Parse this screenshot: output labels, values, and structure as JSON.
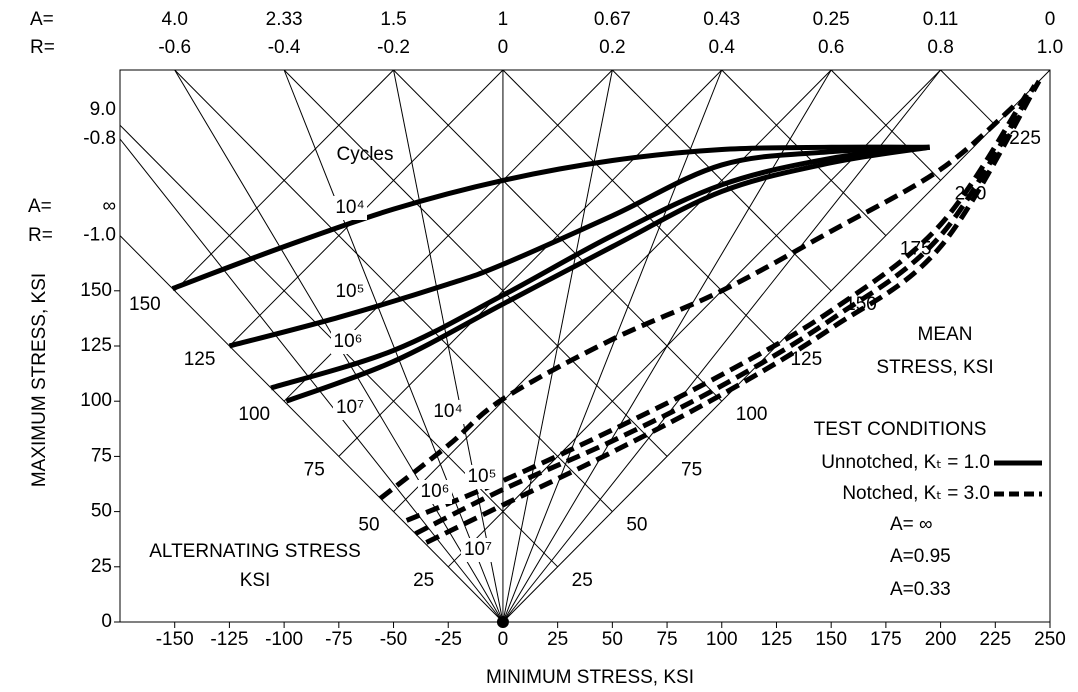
{
  "chart_data": {
    "type": "constant-life",
    "x_label": "MINIMUM STRESS, KSI",
    "y_label": "MAXIMUM STRESS, KSI",
    "alt_label": [
      "ALTERNATING STRESS",
      "KSI"
    ],
    "mean_label": [
      "MEAN",
      "STRESS, KSI"
    ],
    "cycles_label": "Cycles",
    "xlim": [
      -175,
      250
    ],
    "ylim": [
      0,
      250
    ],
    "xticks": [
      -150,
      -125,
      -100,
      -75,
      -50,
      -25,
      0,
      25,
      50,
      75,
      100,
      125,
      150,
      175,
      200,
      225,
      250
    ],
    "yticks": [
      0,
      25,
      50,
      75,
      100,
      125,
      150
    ],
    "mean_ticks": [
      25,
      50,
      75,
      100,
      125,
      150,
      175,
      200,
      225
    ],
    "alt_ticks": [
      25,
      50,
      75,
      100,
      125,
      150
    ],
    "a_prefix": "A=",
    "r_prefix": "R=",
    "a_labels": [
      "4.0",
      "2.33",
      "1.5",
      "1",
      "0.67",
      "0.43",
      "0.25",
      "0.11",
      "0"
    ],
    "rticks": [
      -0.6,
      -0.4,
      -0.2,
      0,
      0.2,
      0.4,
      0.6,
      0.8,
      {
        "value": 1,
        "label": "1.0"
      }
    ],
    "left_a_labels": [
      "9.0",
      "∞"
    ],
    "left_rticks": [
      -0.8,
      {
        "value": -1,
        "label": "-1.0"
      }
    ],
    "color": "#000000",
    "series": [
      {
        "name": "10⁴",
        "dashed": false,
        "x": [
          -151,
          -100,
          -50,
          0,
          50,
          100,
          150,
          195
        ],
        "y": [
          151,
          170,
          187,
          200,
          209,
          214,
          215,
          215
        ]
      },
      {
        "name": "10⁵",
        "dashed": false,
        "x": [
          -125,
          -75,
          -25,
          0,
          50,
          100,
          150,
          195
        ],
        "y": [
          125,
          138,
          153,
          162,
          184,
          207,
          213,
          215
        ]
      },
      {
        "name": "10⁶",
        "dashed": false,
        "x": [
          -106,
          -50,
          0,
          50,
          100,
          150,
          195
        ],
        "y": [
          106,
          123,
          148,
          175,
          198,
          210,
          215
        ]
      },
      {
        "name": "10⁷",
        "dashed": false,
        "x": [
          -99,
          -50,
          0,
          50,
          100,
          150,
          195
        ],
        "y": [
          100,
          118,
          144,
          170,
          195,
          208,
          215
        ]
      },
      {
        "name": "10⁴",
        "dashed": true,
        "x": [
          -56,
          -25,
          0,
          50,
          100,
          150,
          200,
          235
        ],
        "y": [
          56,
          80,
          101,
          128,
          150,
          177,
          205,
          235
        ]
      },
      {
        "name": "10⁵",
        "dashed": true,
        "x": [
          -44,
          0,
          50,
          100,
          150,
          200,
          240
        ],
        "y": [
          46,
          64,
          87,
          112,
          141,
          180,
          240
        ]
      },
      {
        "name": "10⁶",
        "dashed": true,
        "x": [
          -40,
          0,
          50,
          100,
          150,
          200,
          243
        ],
        "y": [
          40,
          60,
          82,
          107,
          137,
          175,
          243
        ]
      },
      {
        "name": "10⁷",
        "dashed": true,
        "x": [
          -35,
          0,
          50,
          100,
          150,
          200,
          245
        ],
        "y": [
          36,
          53,
          77,
          103,
          133,
          170,
          245
        ]
      }
    ],
    "legend_title": "TEST CONDITIONS",
    "legend": [
      {
        "label": "Unnotched, Kₜ = 1.0",
        "dashed": false
      },
      {
        "label": "Notched, Kₜ = 3.0",
        "dashed": true
      }
    ],
    "test_a": [
      "A= ∞",
      "A=0.95",
      "A=0.33"
    ]
  }
}
